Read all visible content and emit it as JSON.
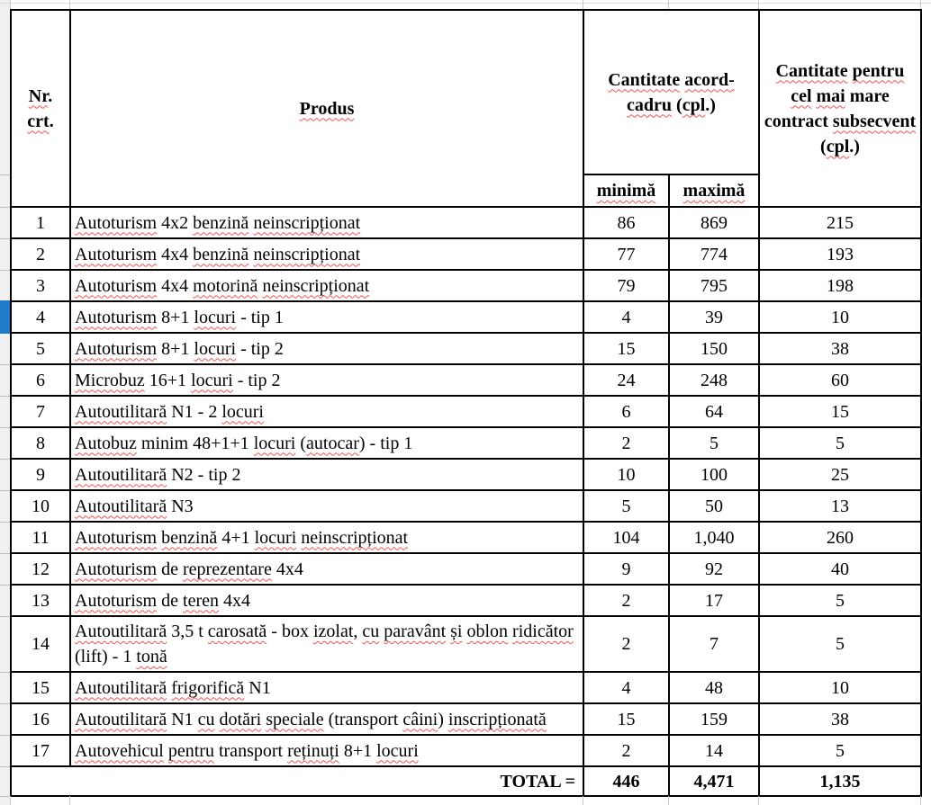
{
  "table": {
    "headers": {
      "nr_crt": "Nr. crt.",
      "nr_crt_sp": [
        "Nr",
        "crt"
      ],
      "produs": "Produs",
      "produs_sp": [
        "Produs"
      ],
      "acord": "Cantitate acord-cadru (cpl.)",
      "acord_sp": [
        "Cantitate",
        "acord-cadru",
        "cpl"
      ],
      "subsecvent": "Cantitate pentru cel mai mare contract subsecvent (cpl.)",
      "subsecvent_sp": [
        "Cantitate",
        "pentru",
        "cel",
        "mai",
        "subsecvent",
        "cpl"
      ],
      "minima": "minimă",
      "minima_sp": [
        "minimă"
      ],
      "maxima": "maximă",
      "maxima_sp": [
        "maximă"
      ]
    },
    "rows": [
      {
        "nr": "1",
        "produs": "Autoturism 4x2 benzină neinscripționat",
        "sp": [
          "Autoturism",
          "benzină",
          "neinscripționat"
        ],
        "minima": "86",
        "maxima": "869",
        "subsecvent": "215"
      },
      {
        "nr": "2",
        "produs": "Autoturism 4x4 benzină neinscripționat",
        "sp": [
          "Autoturism",
          "benzină",
          "neinscripționat"
        ],
        "minima": "77",
        "maxima": "774",
        "subsecvent": "193"
      },
      {
        "nr": "3",
        "produs": "Autoturism 4x4 motorină neinscripționat",
        "sp": [
          "Autoturism",
          "motorină",
          "neinscripționat"
        ],
        "minima": "79",
        "maxima": "795",
        "subsecvent": "198"
      },
      {
        "nr": "4",
        "produs": "Autoturism 8+1 locuri - tip 1",
        "sp": [
          "Autoturism",
          "locuri"
        ],
        "minima": "4",
        "maxima": "39",
        "subsecvent": "10"
      },
      {
        "nr": "5",
        "produs": "Autoturism 8+1 locuri - tip 2",
        "sp": [
          "Autoturism",
          "locuri"
        ],
        "minima": "15",
        "maxima": "150",
        "subsecvent": "38"
      },
      {
        "nr": "6",
        "produs": "Microbuz 16+1 locuri - tip 2",
        "sp": [
          "Microbuz",
          "locuri"
        ],
        "minima": "24",
        "maxima": "248",
        "subsecvent": "60"
      },
      {
        "nr": "7",
        "produs": "Autoutilitară N1 - 2 locuri",
        "sp": [
          "Autoutilitară",
          "locuri"
        ],
        "minima": "6",
        "maxima": "64",
        "subsecvent": "15"
      },
      {
        "nr": "8",
        "produs": "Autobuz minim 48+1+1 locuri (autocar) - tip 1",
        "sp": [
          "Autobuz",
          "locuri",
          "autocar"
        ],
        "minima": "2",
        "maxima": "5",
        "subsecvent": "5"
      },
      {
        "nr": "9",
        "produs": "Autoutilitară N2 - tip 2",
        "sp": [
          "Autoutilitară"
        ],
        "minima": "10",
        "maxima": "100",
        "subsecvent": "25"
      },
      {
        "nr": "10",
        "produs": "Autoutilitară N3",
        "sp": [
          "Autoutilitară"
        ],
        "minima": "5",
        "maxima": "50",
        "subsecvent": "13"
      },
      {
        "nr": "11",
        "produs": "Autoturism benzină 4+1 locuri neinscripționat",
        "sp": [
          "Autoturism",
          "benzină",
          "locuri",
          "neinscripționat"
        ],
        "minima": "104",
        "maxima": "1,040",
        "subsecvent": "260"
      },
      {
        "nr": "12",
        "produs": "Autoturism de reprezentare 4x4",
        "sp": [
          "Autoturism",
          "reprezentare"
        ],
        "minima": "9",
        "maxima": "92",
        "subsecvent": "40"
      },
      {
        "nr": "13",
        "produs": "Autoturism de teren 4x4",
        "sp": [
          "Autoturism",
          "teren"
        ],
        "minima": "2",
        "maxima": "17",
        "subsecvent": "5"
      },
      {
        "nr": "14",
        "produs": "Autoutilitară 3,5 t carosată - box izolat, cu paravânt și oblon ridicător (lift) - 1 tonă",
        "sp": [
          "Autoutilitară",
          "carosată",
          "izolat",
          "cu",
          "paravânt",
          "și",
          "oblon",
          "ridicător",
          "tonă"
        ],
        "minima": "2",
        "maxima": "7",
        "subsecvent": "5"
      },
      {
        "nr": "15",
        "produs": "Autoutilitară frigorifică N1",
        "sp": [
          "Autoutilitară",
          "frigorifică"
        ],
        "minima": "4",
        "maxima": "48",
        "subsecvent": "10"
      },
      {
        "nr": "16",
        "produs": "Autoutilitară N1 cu dotări speciale (transport câini) inscripționată",
        "sp": [
          "Autoutilitară",
          "cu",
          "dotări",
          "speciale",
          "câini",
          "inscripționată"
        ],
        "minima": "15",
        "maxima": "159",
        "subsecvent": "38"
      },
      {
        "nr": "17",
        "produs": "Autovehicul pentru transport reținuți 8+1 locuri",
        "sp": [
          "Autovehicul",
          "pentru",
          "reținuți",
          "locuri"
        ],
        "minima": "2",
        "maxima": "14",
        "subsecvent": "5"
      }
    ],
    "total": {
      "label": "TOTAL =",
      "minima": "446",
      "maxima": "4,471",
      "subsecvent": "1,135"
    }
  },
  "selection": {
    "selected_row_nr": "4",
    "color": "#1f7bc9"
  },
  "colors": {
    "border": "#000000",
    "gutter_bg": "#f0f0f0",
    "gridline": "#c9c9c9",
    "squiggle": "#ef5350"
  }
}
